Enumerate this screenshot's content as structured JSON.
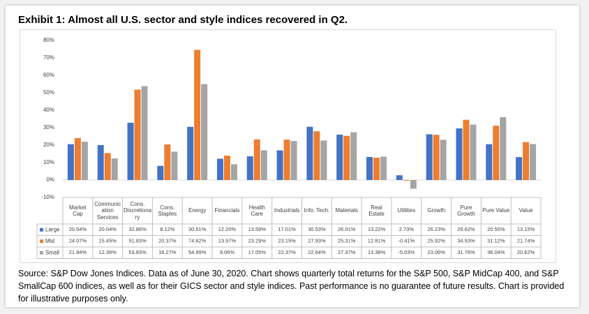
{
  "chart_data": {
    "type": "bar",
    "title": "Exhibit 1:  Almost all U.S. sector and style indices recovered in Q2.",
    "categories": [
      "Market Cap",
      "Communication Services",
      "Cons. Discretionary",
      "Cons. Staples",
      "Energy",
      "Financials",
      "Health Care",
      "Industrials",
      "Info. Tech.",
      "Materials",
      "Real Estate",
      "Utilities",
      "Growth",
      "Pure Growth",
      "Pure Value",
      "Value"
    ],
    "series": [
      {
        "name": "Large",
        "color": "#4472c4",
        "values": [
          20.54,
          20.04,
          32.86,
          8.12,
          30.51,
          12.2,
          13.59,
          17.01,
          30.53,
          26.01,
          13.22,
          2.73,
          26.23,
          29.62,
          20.55,
          13.15
        ],
        "value_labels": [
          "20.54%",
          "20.04%",
          "32.86%",
          "8.12%",
          "30.51%",
          "12.20%",
          "13.59%",
          "17.01%",
          "30.53%",
          "26.01%",
          "13.22%",
          "2.73%",
          "26.23%",
          "29.62%",
          "20.55%",
          "13.15%"
        ]
      },
      {
        "name": "Mid",
        "color": "#ed7d31",
        "values": [
          24.07,
          15.45,
          51.83,
          20.37,
          74.62,
          13.97,
          23.29,
          23.15,
          27.93,
          25.31,
          12.81,
          -0.41,
          25.92,
          34.53,
          31.12,
          21.74
        ],
        "value_labels": [
          "24.07%",
          "15.45%",
          "51.83%",
          "20.37%",
          "74.62%",
          "13.97%",
          "23.29%",
          "23.15%",
          "27.93%",
          "25.31%",
          "12.81%",
          "-0.41%",
          "25.92%",
          "34.53%",
          "31.12%",
          "21.74%"
        ]
      },
      {
        "name": "Small",
        "color": "#a5a5a5",
        "values": [
          21.94,
          12.36,
          53.83,
          16.27,
          54.99,
          9.06,
          17.05,
          22.37,
          22.64,
          27.37,
          13.38,
          -5.03,
          23.06,
          31.76,
          36.04,
          20.62
        ],
        "value_labels": [
          "21.94%",
          "12.36%",
          "53.83%",
          "16.27%",
          "54.99%",
          "9.06%",
          "17.05%",
          "22.37%",
          "22.64%",
          "27.37%",
          "13.38%",
          "-5.03%",
          "23.06%",
          "31.76%",
          "36.04%",
          "20.62%"
        ]
      }
    ],
    "ylim": [
      -10,
      80
    ],
    "yticks": [
      {
        "value": -10,
        "label": "-10%"
      },
      {
        "value": 0,
        "label": "0%"
      },
      {
        "value": 10,
        "label": "10%"
      },
      {
        "value": 20,
        "label": "20%"
      },
      {
        "value": 30,
        "label": "30%"
      },
      {
        "value": 40,
        "label": "40%"
      },
      {
        "value": 50,
        "label": "50%"
      },
      {
        "value": 60,
        "label": "60%"
      },
      {
        "value": 70,
        "label": "70%"
      },
      {
        "value": 80,
        "label": "80%"
      }
    ],
    "grid": false,
    "source": "Source: S&P Dow Jones Indices.  Data as of June 30, 2020.  Chart shows quarterly total returns for the S&P 500, S&P MidCap 400, and S&P SmallCap 600 indices, as well as for their GICS sector and style indices. Past performance is no guarantee of future results.  Chart is provided for illustrative purposes only."
  }
}
